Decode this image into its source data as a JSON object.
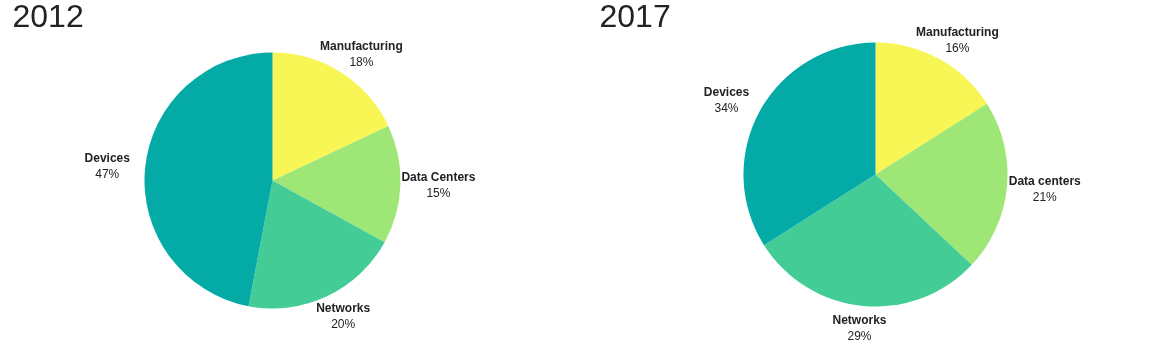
{
  "chart_data": [
    {
      "type": "pie",
      "title": "2012",
      "categories": [
        "Manufacturing",
        "Data Centers",
        "Networks",
        "Devices"
      ],
      "values": [
        18,
        15,
        20,
        47
      ],
      "value_labels": [
        "18%",
        "15%",
        "20%",
        "47%"
      ],
      "colors": [
        "#f8f654",
        "#9ee675",
        "#44cc97",
        "#04aaa6"
      ]
    },
    {
      "type": "pie",
      "title": "2017",
      "categories": [
        "Manufacturing",
        "Data centers",
        "Networks",
        "Devices"
      ],
      "values": [
        16,
        21,
        29,
        34
      ],
      "value_labels": [
        "16%",
        "21%",
        "29%",
        "34%"
      ],
      "colors": [
        "#f8f654",
        "#9ee675",
        "#44cc97",
        "#04aaa6"
      ]
    }
  ]
}
